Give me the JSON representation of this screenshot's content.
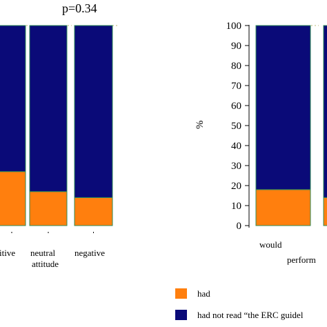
{
  "colors": {
    "had": "#ff7f0e",
    "had_not": "#0a0a78",
    "bar_outline": "#2e8b57"
  },
  "chart_data": [
    {
      "type": "bar",
      "stacked": true,
      "title": "p=0.34",
      "categories": [
        "itive",
        "neutral attitude",
        "negative"
      ],
      "series": [
        {
          "name": "had",
          "values": [
            27,
            17,
            14
          ]
        },
        {
          "name": "had not read “the ERC guidel",
          "values": [
            73,
            83,
            86
          ]
        }
      ],
      "ylim": [
        0,
        100
      ],
      "grid": true
    },
    {
      "type": "bar",
      "stacked": true,
      "title": "",
      "ylabel": "%",
      "yticks": [
        0,
        10,
        20,
        30,
        40,
        50,
        60,
        70,
        80,
        90,
        100
      ],
      "categories": [
        "would perform",
        ""
      ],
      "series": [
        {
          "name": "had",
          "values": [
            18,
            14
          ]
        },
        {
          "name": "had not read “the ERC guidel",
          "values": [
            82,
            86
          ]
        }
      ],
      "ylim": [
        0,
        100
      ],
      "grid": true
    }
  ],
  "legend": {
    "items": [
      {
        "label": "had",
        "color_key": "had"
      },
      {
        "label": "had not read “the ERC guidel",
        "color_key": "had_not"
      }
    ]
  }
}
